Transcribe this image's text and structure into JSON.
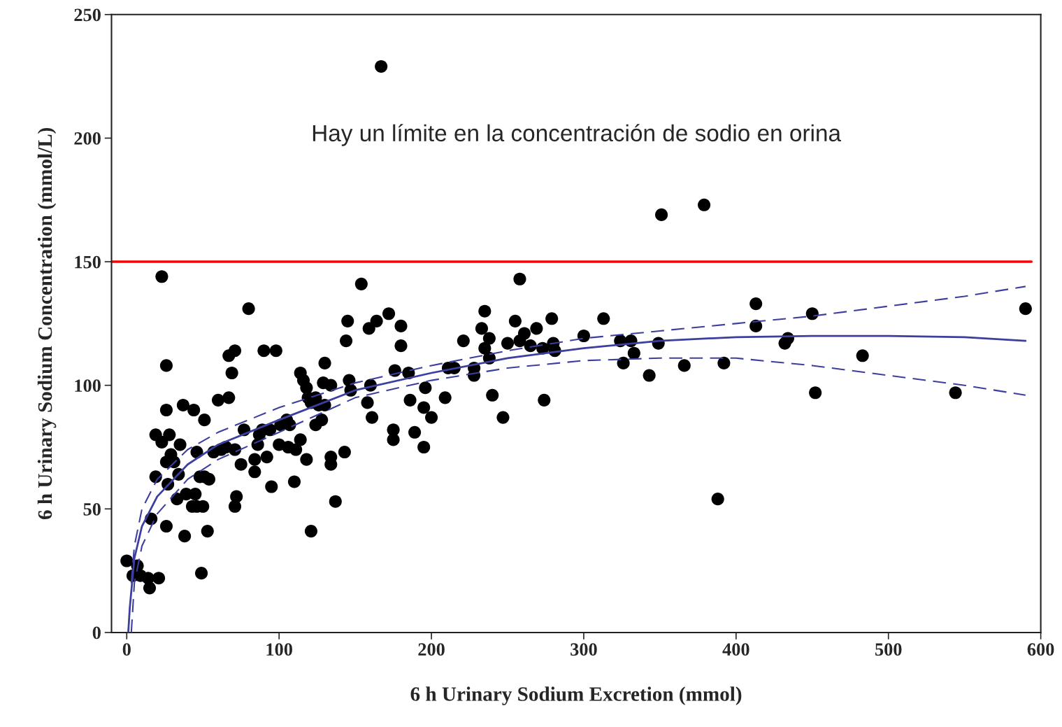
{
  "chart_data": {
    "type": "scatter",
    "xlabel": "6 h Urinary Sodium Excretion (mmol)",
    "ylabel": "6 h Urinary Sodium Concentration (mmol/L)",
    "annotations": [
      "Hay un límite en la concentración de sodio en orina"
    ],
    "xlim": [
      -10,
      600
    ],
    "xticks": [
      0,
      100,
      200,
      300,
      400,
      500,
      600
    ],
    "ylim": [
      0,
      250
    ],
    "yticks": [
      0,
      50,
      100,
      150,
      200,
      250
    ],
    "grid": false,
    "legend": false,
    "marker": "circle",
    "ref_lines": [
      {
        "axis": "y",
        "value": 150,
        "color": "#ff0000",
        "line_style": "solid"
      }
    ],
    "series": [
      {
        "color": "#000000",
        "x": [
          0,
          4,
          7,
          9,
          14,
          15,
          21,
          16,
          19,
          19,
          23,
          23,
          26,
          26,
          26,
          26,
          27,
          28,
          29,
          31,
          33,
          34,
          35,
          37,
          38,
          39,
          43,
          44,
          45,
          46,
          46,
          48,
          49,
          50,
          51,
          51,
          53,
          54,
          57,
          60,
          62,
          65,
          67,
          67,
          69,
          71,
          71,
          71,
          72,
          75,
          77,
          80,
          84,
          84,
          86,
          87,
          89,
          90,
          92,
          94,
          95,
          98,
          100,
          101,
          105,
          106,
          107,
          110,
          111,
          114,
          114,
          116,
          118,
          119,
          118,
          121,
          121,
          124,
          124,
          126,
          128,
          129,
          130,
          130,
          134,
          134,
          134,
          137,
          143,
          144,
          145,
          146,
          147,
          154,
          158,
          159,
          160,
          161,
          164,
          167,
          172,
          175,
          175,
          176,
          180,
          180,
          185,
          186,
          189,
          195,
          195,
          196,
          200,
          209,
          211,
          215,
          221,
          228,
          228,
          233,
          235,
          235,
          238,
          238,
          240,
          247,
          250,
          255,
          258,
          258,
          261,
          265,
          269,
          273,
          274,
          279,
          280,
          281,
          300,
          313,
          324,
          326,
          331,
          333,
          343,
          349,
          351,
          366,
          379,
          388,
          392,
          413,
          413,
          432,
          434,
          450,
          452,
          483,
          544,
          590
        ],
        "values": [
          29,
          23,
          27,
          23,
          22,
          18,
          22,
          46,
          63,
          80,
          77,
          144,
          108,
          90,
          69,
          43,
          60,
          80,
          72,
          69,
          54,
          64,
          76,
          92,
          39,
          56,
          51,
          90,
          56,
          51,
          73,
          63,
          24,
          51,
          86,
          63,
          41,
          62,
          73,
          94,
          74,
          75,
          95,
          112,
          105,
          114,
          74,
          51,
          55,
          68,
          82,
          131,
          65,
          70,
          76,
          80,
          82,
          114,
          71,
          82,
          59,
          114,
          76,
          84,
          86,
          75,
          84,
          61,
          74,
          78,
          105,
          102,
          99,
          95,
          70,
          41,
          93,
          84,
          95,
          92,
          86,
          101,
          109,
          92,
          100,
          71,
          68,
          53,
          73,
          118,
          126,
          102,
          98,
          141,
          93,
          123,
          100,
          87,
          126,
          229,
          129,
          82,
          78,
          106,
          124,
          116,
          105,
          94,
          81,
          75,
          91,
          99,
          87,
          95,
          107,
          107,
          118,
          107,
          104,
          123,
          130,
          115,
          119,
          111,
          96,
          87,
          117,
          126,
          143,
          118,
          121,
          116,
          123,
          115,
          94,
          127,
          117,
          114,
          120,
          127,
          118,
          109,
          118,
          113,
          104,
          117,
          169,
          108,
          173,
          54,
          109,
          133,
          124,
          117,
          119,
          129,
          97,
          112,
          97,
          131
        ]
      },
      {
        "type": "line",
        "color": "#3c3f9e",
        "line_style": "solid",
        "marker": "none",
        "x": [
          1,
          2,
          5,
          10,
          20,
          40,
          60,
          100,
          150,
          200,
          250,
          300,
          350,
          400,
          450,
          500,
          550,
          590
        ],
        "values": [
          0,
          10,
          30,
          43,
          55,
          68,
          76,
          86,
          98,
          105,
          111,
          115,
          118,
          119.5,
          120,
          120,
          119.5,
          118
        ]
      },
      {
        "type": "line",
        "color": "#3c3f9e",
        "line_style": "dashed",
        "marker": "none",
        "x": [
          3,
          5,
          10,
          20,
          40,
          60,
          100,
          150,
          200,
          250,
          300,
          350,
          400,
          450,
          500,
          550,
          590
        ],
        "values": [
          20,
          35,
          50,
          62,
          74,
          81,
          91,
          101,
          108,
          114,
          119,
          122,
          125,
          128,
          132,
          136,
          140
        ]
      },
      {
        "type": "line",
        "color": "#3c3f9e",
        "line_style": "dashed",
        "marker": "none",
        "x": [
          3,
          5,
          10,
          20,
          40,
          60,
          100,
          150,
          200,
          250,
          300,
          350,
          400,
          450,
          500,
          550,
          590
        ],
        "values": [
          0,
          20,
          35,
          48,
          62,
          70,
          81,
          95,
          102,
          107,
          110,
          111,
          111,
          108,
          104,
          100,
          96
        ]
      }
    ]
  }
}
